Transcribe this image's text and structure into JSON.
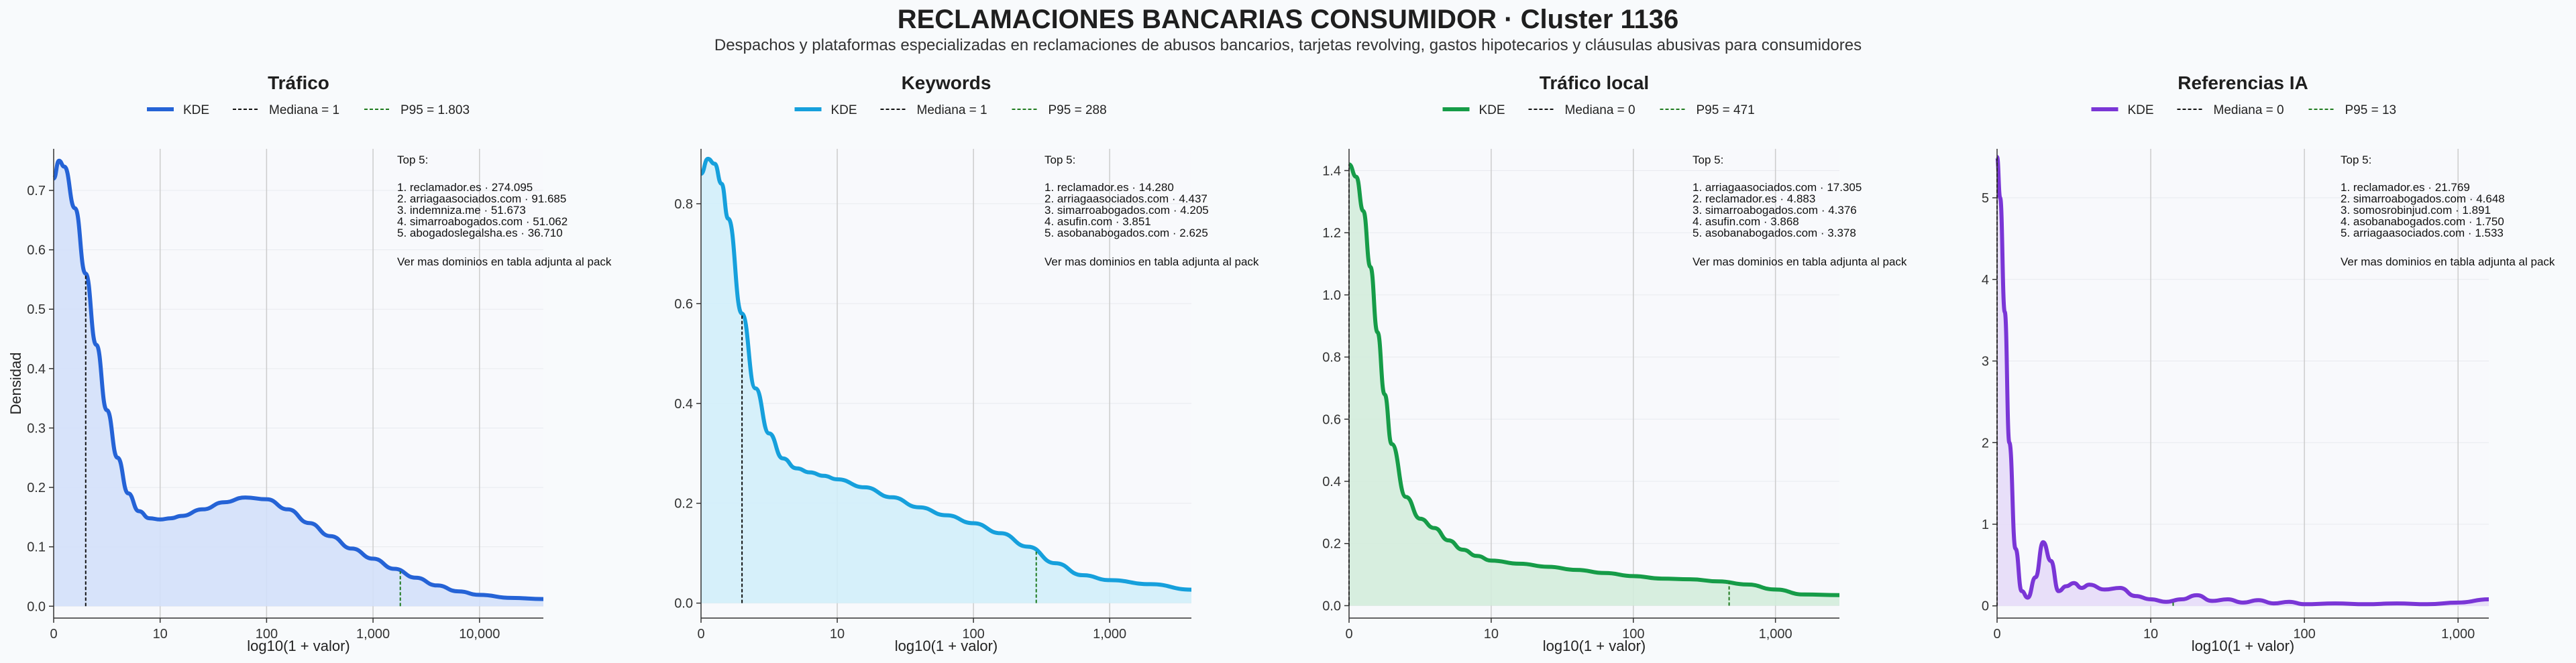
{
  "figure": {
    "title": "RECLAMACIONES BANCARIAS CONSUMIDOR · Cluster 1136",
    "subtitle": "Despachos y plataformas especializadas en reclamaciones de abusos bancarios, tarjetas revolving, gastos hipotecarios y cláusulas abusivas para consumidores"
  },
  "chart_data": [
    {
      "type": "area",
      "title": "Tráfico",
      "xlabel": "log10(1 + valor)",
      "ylabel": "Densidad",
      "color": "#2563d6",
      "fill": "#d3e0fa",
      "legend": [
        "KDE",
        "Mediana = 1",
        "P95 = 1.803"
      ],
      "x_ticks": [
        0,
        1,
        2,
        3,
        4
      ],
      "x_tick_labels": [
        "0",
        "10",
        "100",
        "1,000",
        "10,000"
      ],
      "xlim": [
        0,
        4.6
      ],
      "y_ticks": [
        0,
        0.1,
        0.2,
        0.3,
        0.4,
        0.5,
        0.6,
        0.7
      ],
      "ylim": [
        -0.02,
        0.77
      ],
      "median": 0.301,
      "p95": 3.256,
      "kde": {
        "x": [
          0,
          0.05,
          0.1,
          0.2,
          0.3,
          0.4,
          0.5,
          0.6,
          0.7,
          0.8,
          0.9,
          1.0,
          1.1,
          1.2,
          1.4,
          1.6,
          1.8,
          2.0,
          2.2,
          2.4,
          2.6,
          2.8,
          3.0,
          3.2,
          3.4,
          3.6,
          3.8,
          4.0,
          4.3,
          4.6
        ],
        "y": [
          0.72,
          0.75,
          0.74,
          0.67,
          0.56,
          0.44,
          0.33,
          0.25,
          0.19,
          0.16,
          0.148,
          0.146,
          0.148,
          0.152,
          0.163,
          0.175,
          0.183,
          0.18,
          0.163,
          0.14,
          0.118,
          0.097,
          0.08,
          0.063,
          0.048,
          0.035,
          0.025,
          0.019,
          0.014,
          0.012
        ]
      },
      "top_title": "Top 5:",
      "top": [
        "1. reclamador.es · 274.095",
        "2. arriagaasociados.com · 91.685",
        "3. indemniza.me · 51.673",
        "4. simarroabogados.com · 51.062",
        "5. abogadoslegalsha.es · 36.710"
      ],
      "note": "Ver mas dominios en tabla adjunta al pack"
    },
    {
      "type": "area",
      "title": "Keywords",
      "xlabel": "log10(1 + valor)",
      "ylabel": "",
      "color": "#16a0dc",
      "fill": "#d2eefa",
      "legend": [
        "KDE",
        "Mediana = 1",
        "P95 = 288"
      ],
      "x_ticks": [
        0,
        1,
        2,
        3
      ],
      "x_tick_labels": [
        "0",
        "10",
        "100",
        "1,000"
      ],
      "xlim": [
        0,
        3.6
      ],
      "y_ticks": [
        0,
        0.2,
        0.4,
        0.6,
        0.8
      ],
      "ylim": [
        -0.03,
        0.91
      ],
      "median": 0.301,
      "p95": 2.461,
      "kde": {
        "x": [
          0,
          0.05,
          0.1,
          0.15,
          0.2,
          0.3,
          0.4,
          0.5,
          0.6,
          0.7,
          0.8,
          0.9,
          1.0,
          1.2,
          1.4,
          1.6,
          1.8,
          2.0,
          2.2,
          2.4,
          2.6,
          2.8,
          3.0,
          3.3,
          3.6
        ],
        "y": [
          0.86,
          0.89,
          0.88,
          0.84,
          0.77,
          0.58,
          0.43,
          0.34,
          0.29,
          0.27,
          0.262,
          0.255,
          0.248,
          0.232,
          0.212,
          0.192,
          0.176,
          0.16,
          0.14,
          0.113,
          0.08,
          0.056,
          0.046,
          0.038,
          0.027
        ]
      },
      "top_title": "Top 5:",
      "top": [
        "1. reclamador.es · 14.280",
        "2. arriagaasociados.com · 4.437",
        "3. simarroabogados.com · 4.205",
        "4. asufin.com · 3.851",
        "5. asobanabogados.com · 2.625"
      ],
      "note": "Ver mas dominios en tabla adjunta al pack"
    },
    {
      "type": "area",
      "title": "Tráfico local",
      "xlabel": "log10(1 + valor)",
      "ylabel": "",
      "color": "#169c48",
      "fill": "#d3ecdb",
      "legend": [
        "KDE",
        "Mediana = 0",
        "P95 = 471"
      ],
      "x_ticks": [
        0,
        1,
        2,
        3
      ],
      "x_tick_labels": [
        "0",
        "10",
        "100",
        "1,000"
      ],
      "xlim": [
        0,
        3.45
      ],
      "y_ticks": [
        0,
        0.2,
        0.4,
        0.6,
        0.8,
        1.0,
        1.2,
        1.4
      ],
      "ylim": [
        -0.04,
        1.47
      ],
      "median": 0,
      "p95": 2.674,
      "kde": {
        "x": [
          0,
          0.05,
          0.1,
          0.15,
          0.2,
          0.25,
          0.3,
          0.4,
          0.5,
          0.6,
          0.7,
          0.8,
          0.9,
          1.0,
          1.2,
          1.4,
          1.6,
          1.8,
          2.0,
          2.2,
          2.4,
          2.6,
          2.8,
          3.0,
          3.2,
          3.45
        ],
        "y": [
          1.42,
          1.38,
          1.27,
          1.09,
          0.88,
          0.68,
          0.52,
          0.35,
          0.28,
          0.25,
          0.21,
          0.18,
          0.16,
          0.145,
          0.135,
          0.125,
          0.115,
          0.105,
          0.095,
          0.087,
          0.085,
          0.078,
          0.068,
          0.052,
          0.036,
          0.034
        ]
      },
      "top_title": "Top 5:",
      "top": [
        "1. arriagaasociados.com · 17.305",
        "2. reclamador.es · 4.883",
        "3. simarroabogados.com · 4.376",
        "4. asufin.com · 3.868",
        "5. asobanabogados.com · 3.378"
      ],
      "note": "Ver mas dominios en tabla adjunta al pack"
    },
    {
      "type": "area",
      "title": "Referencias IA",
      "xlabel": "log10(1 + valor)",
      "ylabel": "",
      "color": "#7a36d6",
      "fill": "#e6dcf8",
      "legend": [
        "KDE",
        "Mediana = 0",
        "P95 = 13"
      ],
      "x_ticks": [
        0,
        1,
        2,
        3
      ],
      "x_tick_labels": [
        "0",
        "10",
        "100",
        "1,000"
      ],
      "xlim": [
        0,
        3.2
      ],
      "y_ticks": [
        0,
        1,
        2,
        3,
        4,
        5
      ],
      "ylim": [
        -0.15,
        5.6
      ],
      "median": 0,
      "p95": 1.146,
      "kde": {
        "x": [
          0,
          0.02,
          0.05,
          0.08,
          0.12,
          0.16,
          0.2,
          0.25,
          0.3,
          0.35,
          0.4,
          0.45,
          0.5,
          0.55,
          0.6,
          0.7,
          0.8,
          0.9,
          1.0,
          1.1,
          1.2,
          1.3,
          1.4,
          1.5,
          1.6,
          1.7,
          1.8,
          1.9,
          2.0,
          2.2,
          2.4,
          2.6,
          2.8,
          3.0,
          3.2
        ],
        "y": [
          5.5,
          5.0,
          3.6,
          2.0,
          0.7,
          0.18,
          0.1,
          0.35,
          0.78,
          0.55,
          0.18,
          0.24,
          0.28,
          0.22,
          0.26,
          0.2,
          0.22,
          0.12,
          0.08,
          0.05,
          0.08,
          0.13,
          0.06,
          0.08,
          0.04,
          0.07,
          0.03,
          0.05,
          0.02,
          0.03,
          0.02,
          0.03,
          0.02,
          0.04,
          0.08
        ]
      },
      "top_title": "Top 5:",
      "top": [
        "1. reclamador.es · 21.769",
        "2. simarroabogados.com · 4.648",
        "3. somosrobinjud.com · 1.891",
        "4. asobanabogados.com · 1.750",
        "5. arriagaasociados.com · 1.533"
      ],
      "note": "Ver mas dominios en tabla adjunta al pack"
    }
  ]
}
